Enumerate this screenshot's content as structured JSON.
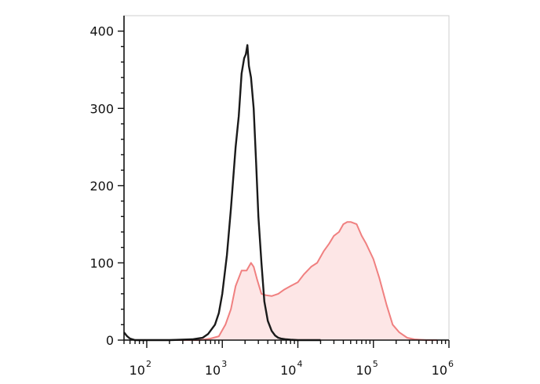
{
  "chart_data": {
    "type": "area",
    "title": "",
    "xlabel": "",
    "ylabel": "",
    "x_scale": "log",
    "xlim": [
      50,
      1000000
    ],
    "ylim": [
      0,
      420
    ],
    "grid": false,
    "legend": "none",
    "y_ticks": [
      {
        "value": 0,
        "label": "0"
      },
      {
        "value": 100,
        "label": "100"
      },
      {
        "value": 200,
        "label": "200"
      },
      {
        "value": 300,
        "label": "300"
      },
      {
        "value": 400,
        "label": "400"
      }
    ],
    "x_ticks": [
      {
        "value": 100,
        "base": "10",
        "exp": "2"
      },
      {
        "value": 1000,
        "base": "10",
        "exp": "3"
      },
      {
        "value": 10000,
        "base": "10",
        "exp": "4"
      },
      {
        "value": 100000,
        "base": "10",
        "exp": "5"
      },
      {
        "value": 1000000,
        "base": "10",
        "exp": "6"
      }
    ],
    "series": [
      {
        "style": "line",
        "color": "#1a1a1a",
        "x": [
          50,
          55,
          60,
          70,
          100,
          200,
          400,
          550,
          650,
          800,
          900,
          1000,
          1150,
          1300,
          1500,
          1650,
          1800,
          1950,
          2050,
          2150,
          2250,
          2400,
          2600,
          2800,
          3000,
          3300,
          3600,
          4000,
          4500,
          5000,
          5500,
          6000,
          7000,
          8000,
          10000,
          12000,
          15000,
          20000
        ],
        "y": [
          10,
          5,
          2,
          0,
          0,
          0,
          1,
          3,
          8,
          20,
          35,
          60,
          110,
          170,
          250,
          290,
          345,
          365,
          370,
          382,
          355,
          340,
          300,
          230,
          160,
          100,
          50,
          25,
          12,
          6,
          3,
          2,
          1,
          0.5,
          0,
          0,
          0,
          0
        ]
      },
      {
        "style": "filled",
        "color": "#f08080",
        "fill": "#fde6e6",
        "x": [
          200,
          500,
          700,
          900,
          1100,
          1300,
          1500,
          1800,
          2100,
          2400,
          2600,
          2900,
          3300,
          3800,
          4500,
          5500,
          6500,
          8000,
          10000,
          12000,
          15000,
          18000,
          22000,
          26000,
          30000,
          35000,
          40000,
          45000,
          50000,
          60000,
          70000,
          80000,
          100000,
          120000,
          150000,
          180000,
          220000,
          280000,
          350000,
          500000,
          700000
        ],
        "y": [
          0,
          0,
          2,
          5,
          20,
          40,
          70,
          90,
          90,
          100,
          95,
          78,
          60,
          58,
          57,
          60,
          65,
          70,
          75,
          85,
          95,
          100,
          115,
          125,
          135,
          140,
          150,
          153,
          153,
          150,
          135,
          125,
          105,
          80,
          45,
          20,
          10,
          3,
          1,
          0,
          0
        ]
      }
    ]
  }
}
